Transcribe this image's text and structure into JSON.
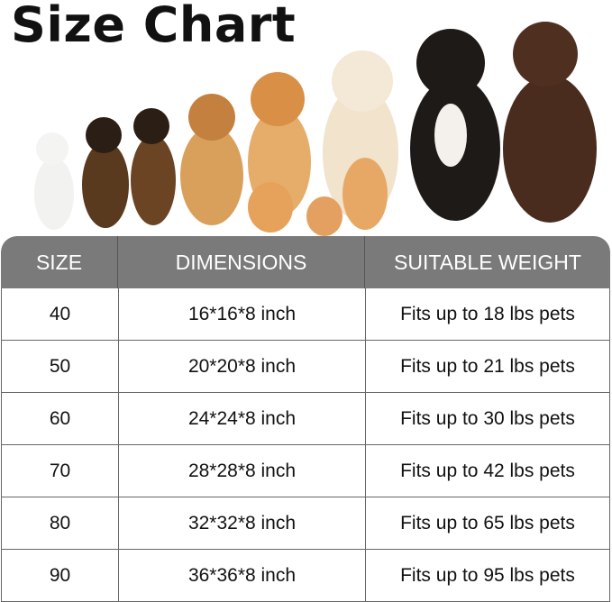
{
  "title": "Size Chart",
  "table": {
    "headers": [
      "SIZE",
      "DIMENSIONS",
      "SUITABLE WEIGHT"
    ],
    "rows": [
      [
        "40",
        "16*16*8 inch",
        "Fits up to 18 lbs pets"
      ],
      [
        "50",
        "20*20*8 inch",
        "Fits up to 21 lbs pets"
      ],
      [
        "60",
        "24*24*8 inch",
        "Fits up to 30 lbs pets"
      ],
      [
        "70",
        "28*28*8 inch",
        "Fits up to 42 lbs pets"
      ],
      [
        "80",
        "32*32*8 inch",
        "Fits up to 65 lbs pets"
      ],
      [
        "90",
        "36*36*8 inch",
        "Fits up to 95 lbs pets"
      ]
    ]
  },
  "colors": {
    "header_bg": "#7a7a7a",
    "header_text": "#ffffff",
    "border": "#666666"
  }
}
